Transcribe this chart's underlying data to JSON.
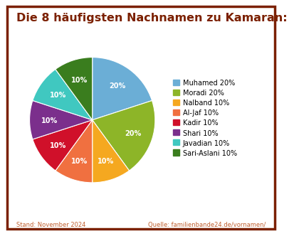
{
  "title": "Die 8 häufigsten Nachnamen zu Kamaran:",
  "title_color": "#7B2000",
  "title_fontsize": 11.5,
  "labels": [
    "Muhamed",
    "Moradi",
    "Nalband",
    "Al-Jaf",
    "Kadir",
    "Shari",
    "Javadian",
    "Sari-Aslani"
  ],
  "values": [
    20,
    20,
    10,
    10,
    10,
    10,
    10,
    10
  ],
  "colors": [
    "#6BAED6",
    "#8DB528",
    "#F5A820",
    "#F07040",
    "#D0102A",
    "#7B2F8C",
    "#40C8C0",
    "#3A7D1E"
  ],
  "pct_labels": [
    "20%",
    "20%",
    "10%",
    "10%",
    "10%",
    "10%",
    "10%",
    "10%"
  ],
  "legend_labels": [
    "Muhamed 20%",
    "Moradi 20%",
    "Nalband 10%",
    "Al-Jaf 10%",
    "Kadir 10%",
    "Shari 10%",
    "Javadian 10%",
    "Sari-Aslani 10%"
  ],
  "footer_left": "Stand: November 2024",
  "footer_right": "Quelle: familienbande24.de/vornamen/",
  "footer_color": "#C06030",
  "border_color": "#7B2000",
  "bg_color": "#FFFFFF"
}
